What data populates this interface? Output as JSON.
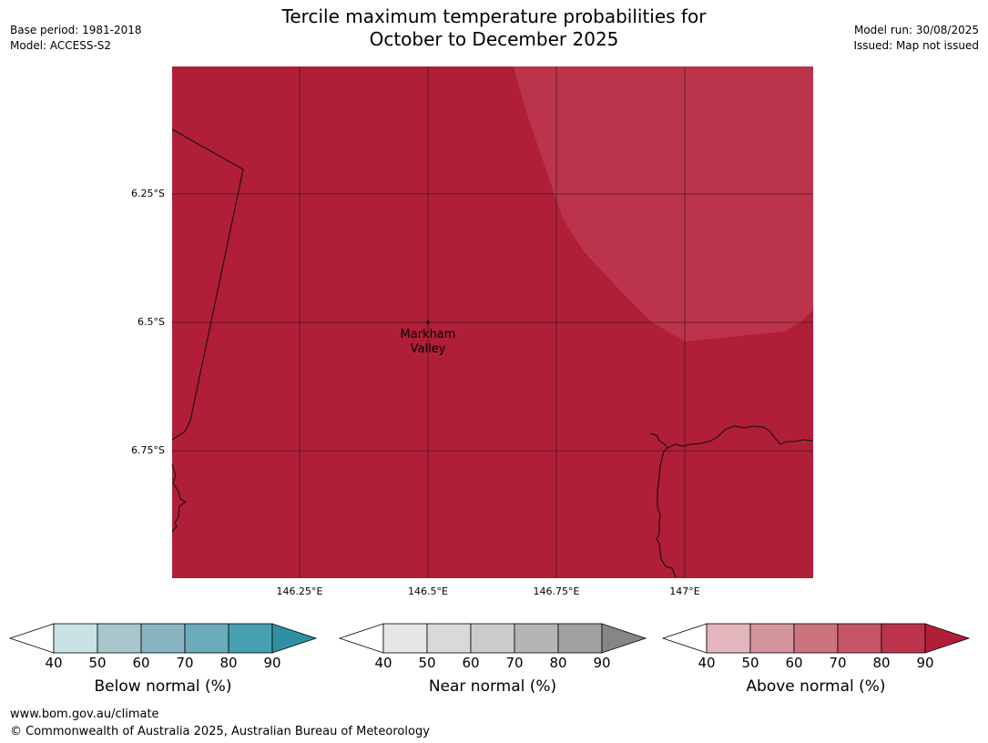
{
  "header": {
    "title_line1": "Tercile maximum temperature probabilities for",
    "title_line2": "October to December 2025",
    "base_period": "Base period: 1981-2018",
    "model": "Model: ACCESS-S2",
    "model_run": "Model run: 30/08/2025",
    "issued": "Issued: Map not issued"
  },
  "map": {
    "latitude_labels": [
      "6.25°S",
      "6.5°S",
      "6.75°S"
    ],
    "longitude_labels": [
      "146.25°E",
      "146.5°E",
      "146.75°E",
      "147°E"
    ],
    "place_name_line1": "Markham",
    "place_name_line2": "Valley",
    "base_fill_color": "#b11e38",
    "high_prob_fill_color": "#bc344b"
  },
  "colorbars": [
    {
      "label": "Below normal (%)",
      "ticks": [
        "40",
        "50",
        "60",
        "70",
        "80",
        "90"
      ],
      "colors": [
        "#c9e2e6",
        "#a8c7cc",
        "#88b5c1",
        "#6aacb9",
        "#46a0b0",
        "#2e90a3"
      ]
    },
    {
      "label": "Near normal (%)",
      "ticks": [
        "40",
        "50",
        "60",
        "70",
        "80",
        "90"
      ],
      "colors": [
        "#e6e6e6",
        "#d9d9d9",
        "#cbcbcb",
        "#b5b5b5",
        "#a1a1a1",
        "#868686"
      ]
    },
    {
      "label": "Above normal (%)",
      "ticks": [
        "40",
        "50",
        "60",
        "70",
        "80",
        "90"
      ],
      "colors": [
        "#e2b6bc",
        "#d6949d",
        "#cc737d",
        "#c45668",
        "#bc344b",
        "#b11e38"
      ]
    }
  ],
  "footer": {
    "website": "www.bom.gov.au/climate",
    "copyright": "© Commonwealth of Australia 2025, Australian Bureau of Meteorology"
  }
}
